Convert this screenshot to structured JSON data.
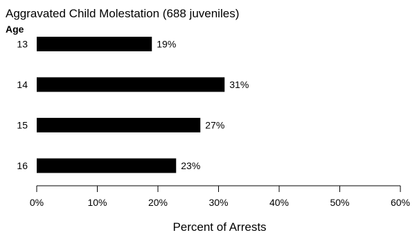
{
  "chart_data": {
    "type": "bar",
    "orientation": "horizontal",
    "title": "Aggravated Child Molestation (688 juveniles)",
    "ylabel": "Age",
    "xlabel": "Percent of Arrests",
    "categories": [
      "13",
      "14",
      "15",
      "16"
    ],
    "values": [
      19,
      31,
      27,
      23
    ],
    "data_labels": [
      "19%",
      "31%",
      "27%",
      "23%"
    ],
    "xlim": [
      0,
      60
    ],
    "xticks": [
      0,
      10,
      20,
      30,
      40,
      50,
      60
    ],
    "xtick_labels": [
      "0%",
      "10%",
      "20%",
      "30%",
      "40%",
      "50%",
      "60%"
    ],
    "bar_color": "#000000",
    "grid": false,
    "legend": "none"
  }
}
